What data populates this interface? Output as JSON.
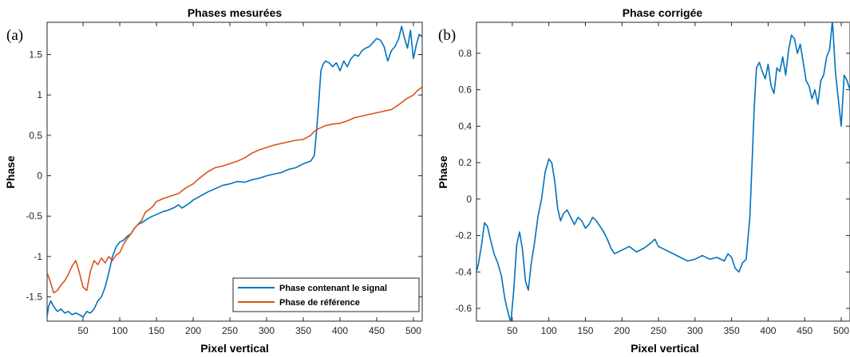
{
  "chart_data": [
    {
      "type": "line",
      "panel_label": "(a)",
      "title": "Phases mesurées",
      "xlabel": "Pixel vertical",
      "ylabel": "Phase",
      "xlim": [
        1,
        512
      ],
      "ylim": [
        -1.8,
        1.9
      ],
      "xticks": [
        50,
        100,
        150,
        200,
        250,
        300,
        350,
        400,
        450,
        500
      ],
      "yticks": [
        -1.5,
        -1,
        -0.5,
        0,
        0.5,
        1,
        1.5
      ],
      "xtick_labels": [
        "50",
        "100",
        "150",
        "200",
        "250",
        "300",
        "350",
        "400",
        "450",
        "500"
      ],
      "ytick_labels": [
        "-1.5",
        "-1",
        "-0.5",
        "0",
        "0.5",
        "1",
        "1.5"
      ],
      "grid": false,
      "legend_position": "bottom-right",
      "series": [
        {
          "name": "Phase contenant le signal",
          "color": "#0072BD",
          "x": [
            1,
            3,
            6,
            10,
            15,
            20,
            25,
            30,
            35,
            40,
            45,
            50,
            55,
            60,
            65,
            70,
            75,
            80,
            85,
            90,
            95,
            100,
            105,
            110,
            115,
            120,
            125,
            130,
            135,
            140,
            145,
            150,
            155,
            160,
            165,
            170,
            175,
            180,
            185,
            190,
            195,
            200,
            210,
            220,
            230,
            240,
            250,
            260,
            270,
            280,
            290,
            300,
            310,
            320,
            330,
            340,
            350,
            360,
            365,
            368,
            371,
            374,
            377,
            380,
            385,
            390,
            395,
            400,
            405,
            410,
            415,
            420,
            425,
            430,
            435,
            440,
            445,
            450,
            455,
            460,
            465,
            470,
            475,
            480,
            484,
            488,
            492,
            496,
            500,
            504,
            508,
            512
          ],
          "y": [
            -1.75,
            -1.62,
            -1.55,
            -1.62,
            -1.68,
            -1.65,
            -1.7,
            -1.68,
            -1.72,
            -1.7,
            -1.72,
            -1.75,
            -1.68,
            -1.7,
            -1.65,
            -1.55,
            -1.5,
            -1.38,
            -1.2,
            -1.0,
            -0.88,
            -0.82,
            -0.8,
            -0.75,
            -0.72,
            -0.65,
            -0.6,
            -0.58,
            -0.55,
            -0.52,
            -0.5,
            -0.48,
            -0.46,
            -0.44,
            -0.43,
            -0.41,
            -0.39,
            -0.36,
            -0.4,
            -0.37,
            -0.34,
            -0.3,
            -0.25,
            -0.2,
            -0.16,
            -0.12,
            -0.1,
            -0.07,
            -0.08,
            -0.05,
            -0.03,
            0.0,
            0.02,
            0.04,
            0.08,
            0.1,
            0.15,
            0.18,
            0.25,
            0.55,
            0.9,
            1.3,
            1.38,
            1.42,
            1.4,
            1.35,
            1.4,
            1.3,
            1.42,
            1.35,
            1.45,
            1.5,
            1.48,
            1.55,
            1.58,
            1.6,
            1.65,
            1.7,
            1.68,
            1.6,
            1.42,
            1.55,
            1.6,
            1.7,
            1.85,
            1.7,
            1.58,
            1.8,
            1.45,
            1.62,
            1.75,
            1.72
          ]
        },
        {
          "name": "Phase de référence",
          "color": "#D95319",
          "x": [
            1,
            5,
            10,
            15,
            20,
            25,
            30,
            35,
            40,
            45,
            50,
            55,
            60,
            65,
            70,
            75,
            80,
            85,
            90,
            95,
            100,
            105,
            110,
            115,
            120,
            125,
            130,
            135,
            140,
            145,
            150,
            160,
            170,
            180,
            190,
            200,
            210,
            220,
            230,
            240,
            250,
            260,
            270,
            280,
            290,
            300,
            310,
            320,
            330,
            340,
            350,
            360,
            365,
            370,
            375,
            380,
            390,
            400,
            410,
            420,
            430,
            440,
            450,
            460,
            470,
            480,
            490,
            500,
            505,
            512
          ],
          "y": [
            -1.2,
            -1.3,
            -1.45,
            -1.42,
            -1.35,
            -1.3,
            -1.22,
            -1.12,
            -1.05,
            -1.2,
            -1.38,
            -1.42,
            -1.18,
            -1.05,
            -1.1,
            -1.02,
            -1.08,
            -1.0,
            -1.05,
            -0.98,
            -0.95,
            -0.85,
            -0.78,
            -0.72,
            -0.65,
            -0.6,
            -0.55,
            -0.45,
            -0.42,
            -0.38,
            -0.32,
            -0.28,
            -0.25,
            -0.22,
            -0.15,
            -0.1,
            -0.02,
            0.05,
            0.1,
            0.12,
            0.15,
            0.18,
            0.22,
            0.28,
            0.32,
            0.35,
            0.38,
            0.4,
            0.42,
            0.44,
            0.45,
            0.5,
            0.55,
            0.58,
            0.6,
            0.62,
            0.64,
            0.65,
            0.68,
            0.72,
            0.74,
            0.76,
            0.78,
            0.8,
            0.82,
            0.88,
            0.95,
            1.0,
            1.05,
            1.1
          ]
        }
      ]
    },
    {
      "type": "line",
      "panel_label": "(b)",
      "title": "Phase corrigée",
      "xlabel": "Pixel vertical",
      "ylabel": "Phase",
      "xlim": [
        1,
        512
      ],
      "ylim": [
        -0.67,
        0.97
      ],
      "xticks": [
        50,
        100,
        150,
        200,
        250,
        300,
        350,
        400,
        450,
        500
      ],
      "yticks": [
        -0.6,
        -0.4,
        -0.2,
        0,
        0.2,
        0.4,
        0.6,
        0.8
      ],
      "xtick_labels": [
        "50",
        "100",
        "150",
        "200",
        "250",
        "300",
        "350",
        "400",
        "450",
        "500"
      ],
      "ytick_labels": [
        "-0.6",
        "-0.4",
        "-0.2",
        "0",
        "0.2",
        "0.4",
        "0.6",
        "0.8"
      ],
      "grid": false,
      "series": [
        {
          "color": "#0072BD",
          "x": [
            1,
            4,
            8,
            12,
            16,
            20,
            25,
            30,
            35,
            40,
            44,
            48,
            52,
            56,
            60,
            64,
            68,
            72,
            76,
            80,
            85,
            90,
            95,
            100,
            104,
            108,
            112,
            116,
            120,
            125,
            130,
            135,
            140,
            145,
            150,
            155,
            160,
            165,
            170,
            175,
            180,
            185,
            190,
            200,
            210,
            220,
            230,
            240,
            245,
            250,
            260,
            270,
            280,
            290,
            300,
            310,
            320,
            330,
            340,
            345,
            350,
            355,
            360,
            365,
            370,
            375,
            378,
            381,
            384,
            388,
            392,
            396,
            400,
            404,
            408,
            412,
            416,
            420,
            424,
            428,
            432,
            436,
            440,
            444,
            448,
            452,
            456,
            460,
            464,
            468,
            472,
            476,
            480,
            484,
            488,
            492,
            496,
            500,
            504,
            508,
            512
          ],
          "y": [
            -0.4,
            -0.35,
            -0.25,
            -0.13,
            -0.15,
            -0.22,
            -0.3,
            -0.35,
            -0.42,
            -0.55,
            -0.62,
            -0.68,
            -0.5,
            -0.25,
            -0.18,
            -0.28,
            -0.45,
            -0.5,
            -0.35,
            -0.25,
            -0.1,
            0.0,
            0.15,
            0.22,
            0.2,
            0.1,
            -0.05,
            -0.12,
            -0.08,
            -0.06,
            -0.1,
            -0.14,
            -0.1,
            -0.12,
            -0.16,
            -0.14,
            -0.1,
            -0.12,
            -0.15,
            -0.18,
            -0.22,
            -0.27,
            -0.3,
            -0.28,
            -0.26,
            -0.29,
            -0.27,
            -0.24,
            -0.22,
            -0.26,
            -0.28,
            -0.3,
            -0.32,
            -0.34,
            -0.33,
            -0.31,
            -0.33,
            -0.32,
            -0.34,
            -0.3,
            -0.32,
            -0.38,
            -0.4,
            -0.35,
            -0.33,
            -0.1,
            0.2,
            0.5,
            0.72,
            0.75,
            0.7,
            0.66,
            0.74,
            0.62,
            0.58,
            0.72,
            0.7,
            0.78,
            0.68,
            0.82,
            0.9,
            0.88,
            0.8,
            0.85,
            0.75,
            0.65,
            0.62,
            0.55,
            0.6,
            0.52,
            0.65,
            0.68,
            0.78,
            0.82,
            0.98,
            0.7,
            0.55,
            0.4,
            0.68,
            0.65,
            0.6
          ]
        }
      ]
    }
  ]
}
